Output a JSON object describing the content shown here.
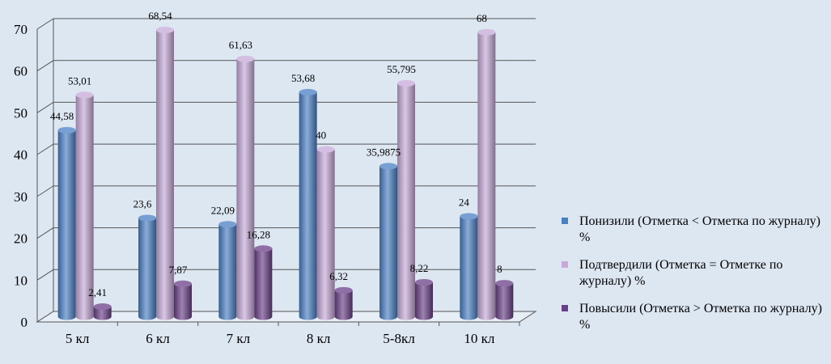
{
  "chart_data": {
    "type": "bar",
    "categories": [
      "5 кл",
      "6 кл",
      "7 кл",
      "8 кл",
      "5-8кл",
      "10 кл"
    ],
    "series": [
      {
        "name": "Понизили (Отметка < Отметка по журналу) %",
        "values": [
          44.58,
          23.6,
          22.09,
          53.68,
          35.9875,
          24
        ],
        "labels": [
          "44,58",
          "23,6",
          "22,09",
          "53,68",
          "35,9875",
          "24"
        ],
        "color": "#4a7fc4"
      },
      {
        "name": "Подтвердили (Отметка = Отметке по журналу) %",
        "values": [
          53.01,
          68.54,
          61.63,
          40,
          55.795,
          68
        ],
        "labels": [
          "53,01",
          "68,54",
          "61,63",
          "40",
          "55,795",
          "68"
        ],
        "color": "#c6a9d8"
      },
      {
        "name": "Повысили (Отметка > Отметка по журналу) %",
        "values": [
          2.41,
          7.87,
          16.28,
          6.32,
          8.22,
          8
        ],
        "labels": [
          "2,41",
          "7,87",
          "16,28",
          "6,32",
          "8,22",
          "8"
        ],
        "color": "#6a3f87"
      }
    ],
    "yticks": [
      "0",
      "10",
      "20",
      "30",
      "40",
      "50",
      "60",
      "70"
    ],
    "ylim": [
      0,
      70
    ],
    "grid": true,
    "legend": "right",
    "title": "",
    "xlabel": "",
    "ylabel": ""
  },
  "legend": {
    "items": [
      {
        "label": "Понизили (Отметка < Отметка по журналу) %",
        "color": "#4a7fc4"
      },
      {
        "label": "Подтвердили (Отметка = Отметке по журналу) %",
        "color": "#c6a9d8"
      },
      {
        "label": "Повысили (Отметка > Отметка по журналу) %",
        "color": "#6a3f87"
      }
    ]
  }
}
